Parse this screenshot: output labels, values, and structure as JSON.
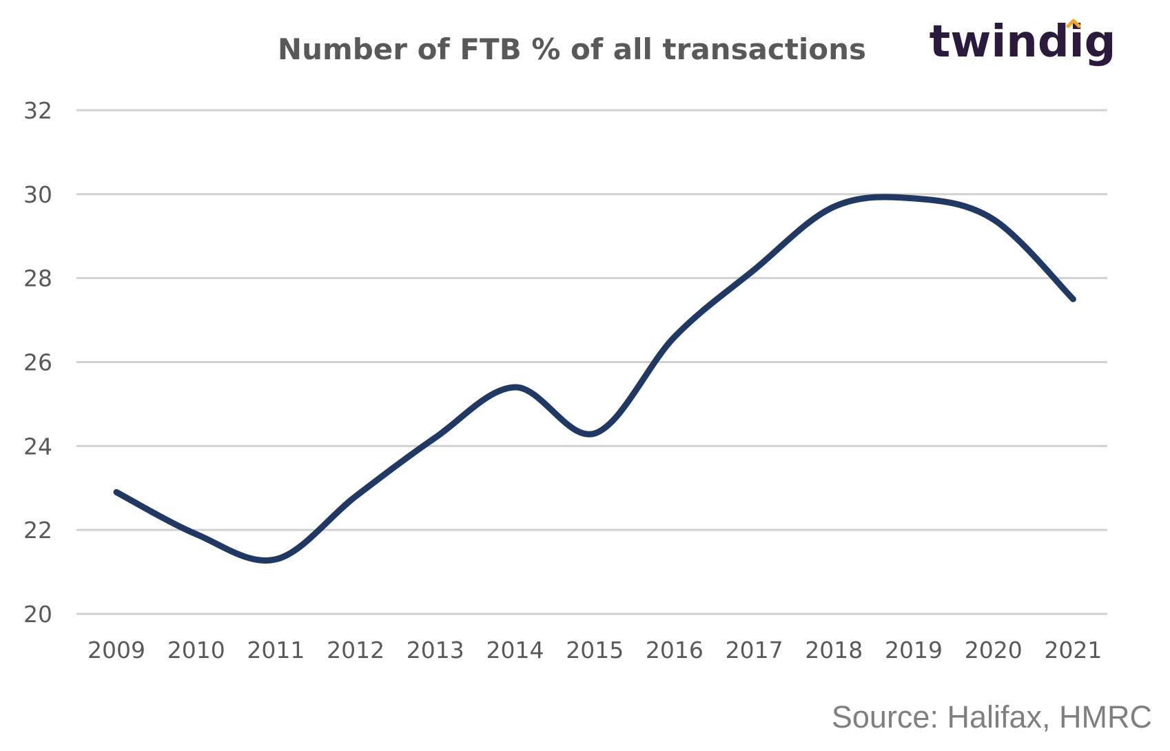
{
  "brand": {
    "name": "twindig",
    "color": "#2b1a3d",
    "accent": "#f5a623"
  },
  "source": "Source: Halifax, HMRC",
  "chart_data": {
    "type": "line",
    "title": "Number of FTB % of all transactions",
    "xlabel": "",
    "ylabel": "",
    "categories": [
      "2009",
      "2010",
      "2011",
      "2012",
      "2013",
      "2014",
      "2015",
      "2016",
      "2017",
      "2018",
      "2019",
      "2020",
      "2021"
    ],
    "series": [
      {
        "values": [
          22.9,
          21.9,
          21.3,
          22.8,
          24.2,
          25.4,
          24.3,
          26.6,
          28.2,
          29.7,
          29.9,
          29.4,
          27.5
        ],
        "color": "#1f3864"
      }
    ],
    "ylim": [
      20,
      32
    ],
    "yticks": [
      20,
      22,
      24,
      26,
      28,
      30,
      32
    ],
    "grid": true,
    "smooth": true,
    "legend": "none"
  }
}
